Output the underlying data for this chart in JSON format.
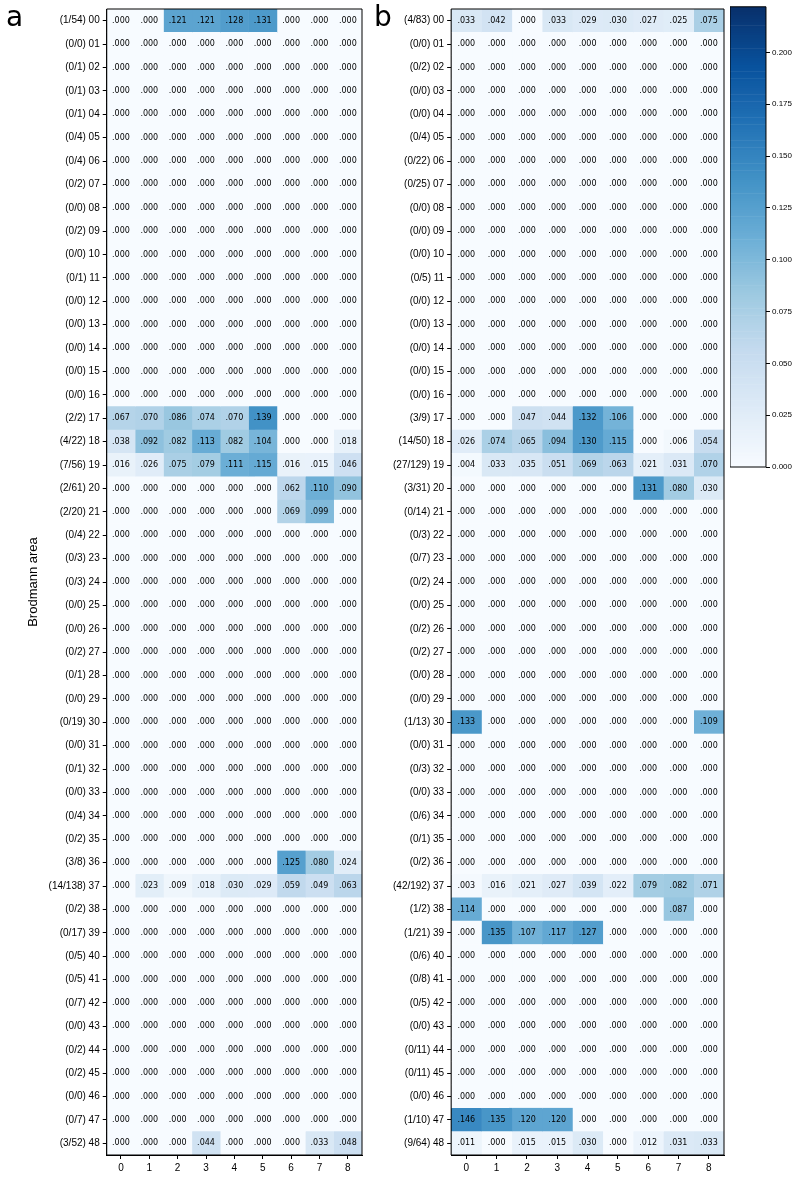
{
  "chart_data": [
    {
      "type": "heatmap",
      "title": "a",
      "ylabel": "Brodmann area",
      "categories": [
        "0",
        "1",
        "2",
        "3",
        "4",
        "5",
        "6",
        "7",
        "8"
      ],
      "y_categories": [
        "(1/54) 00",
        "(0/0) 01",
        "(0/1) 02",
        "(0/1) 03",
        "(0/1) 04",
        "(0/4) 05",
        "(0/4) 06",
        "(0/2) 07",
        "(0/0) 08",
        "(0/2) 09",
        "(0/0) 10",
        "(0/1) 11",
        "(0/0) 12",
        "(0/0) 13",
        "(0/0) 14",
        "(0/0) 15",
        "(0/0) 16",
        "(2/2) 17",
        "(4/22) 18",
        "(7/56) 19",
        "(2/61) 20",
        "(2/20) 21",
        "(0/4) 22",
        "(0/3) 23",
        "(0/3) 24",
        "(0/0) 25",
        "(0/0) 26",
        "(0/2) 27",
        "(0/1) 28",
        "(0/0) 29",
        "(0/19) 30",
        "(0/0) 31",
        "(0/1) 32",
        "(0/0) 33",
        "(0/4) 34",
        "(0/2) 35",
        "(3/8) 36",
        "(14/138) 37",
        "(0/2) 38",
        "(0/17) 39",
        "(0/5) 40",
        "(0/5) 41",
        "(0/7) 42",
        "(0/0) 43",
        "(0/2) 44",
        "(0/2) 45",
        "(0/0) 46",
        "(0/7) 47",
        "(3/52) 48"
      ],
      "cells": [
        [
          0,
          0,
          0.121,
          0.121,
          0.128,
          0.131,
          0,
          0,
          0
        ],
        [
          0,
          0,
          0,
          0,
          0,
          0,
          0,
          0,
          0
        ],
        [
          0,
          0,
          0,
          0,
          0,
          0,
          0,
          0,
          0
        ],
        [
          0,
          0,
          0,
          0,
          0,
          0,
          0,
          0,
          0
        ],
        [
          0,
          0,
          0,
          0,
          0,
          0,
          0,
          0,
          0
        ],
        [
          0,
          0,
          0,
          0,
          0,
          0,
          0,
          0,
          0
        ],
        [
          0,
          0,
          0,
          0,
          0,
          0,
          0,
          0,
          0
        ],
        [
          0,
          0,
          0,
          0,
          0,
          0,
          0,
          0,
          0
        ],
        [
          0,
          0,
          0,
          0,
          0,
          0,
          0,
          0,
          0
        ],
        [
          0,
          0,
          0,
          0,
          0,
          0,
          0,
          0,
          0
        ],
        [
          0,
          0,
          0,
          0,
          0,
          0,
          0,
          0,
          0
        ],
        [
          0,
          0,
          0,
          0,
          0,
          0,
          0,
          0,
          0
        ],
        [
          0,
          0,
          0,
          0,
          0,
          0,
          0,
          0,
          0
        ],
        [
          0,
          0,
          0,
          0,
          0,
          0,
          0,
          0,
          0
        ],
        [
          0,
          0,
          0,
          0,
          0,
          0,
          0,
          0,
          0
        ],
        [
          0,
          0,
          0,
          0,
          0,
          0,
          0,
          0,
          0
        ],
        [
          0,
          0,
          0,
          0,
          0,
          0,
          0,
          0,
          0
        ],
        [
          0.067,
          0.07,
          0.086,
          0.074,
          0.07,
          0.139,
          0,
          0,
          0
        ],
        [
          0.038,
          0.092,
          0.082,
          0.113,
          0.082,
          0.104,
          0,
          0,
          0.018
        ],
        [
          0.016,
          0.026,
          0.075,
          0.079,
          0.111,
          0.115,
          0.016,
          0.015,
          0.046
        ],
        [
          0,
          0,
          0,
          0,
          0,
          0,
          0.062,
          0.11,
          0.09
        ],
        [
          0,
          0,
          0,
          0,
          0,
          0,
          0.069,
          0.099,
          0
        ],
        [
          0,
          0,
          0,
          0,
          0,
          0,
          0,
          0,
          0
        ],
        [
          0,
          0,
          0,
          0,
          0,
          0,
          0,
          0,
          0
        ],
        [
          0,
          0,
          0,
          0,
          0,
          0,
          0,
          0,
          0
        ],
        [
          0,
          0,
          0,
          0,
          0,
          0,
          0,
          0,
          0
        ],
        [
          0,
          0,
          0,
          0,
          0,
          0,
          0,
          0,
          0
        ],
        [
          0,
          0,
          0,
          0,
          0,
          0,
          0,
          0,
          0
        ],
        [
          0,
          0,
          0,
          0,
          0,
          0,
          0,
          0,
          0
        ],
        [
          0,
          0,
          0,
          0,
          0,
          0,
          0,
          0,
          0
        ],
        [
          0,
          0,
          0,
          0,
          0,
          0,
          0,
          0,
          0
        ],
        [
          0,
          0,
          0,
          0,
          0,
          0,
          0,
          0,
          0
        ],
        [
          0,
          0,
          0,
          0,
          0,
          0,
          0,
          0,
          0
        ],
        [
          0,
          0,
          0,
          0,
          0,
          0,
          0,
          0,
          0
        ],
        [
          0,
          0,
          0,
          0,
          0,
          0,
          0,
          0,
          0
        ],
        [
          0,
          0,
          0,
          0,
          0,
          0,
          0,
          0,
          0
        ],
        [
          0,
          0,
          0,
          0,
          0,
          0,
          0.125,
          0.08,
          0.024
        ],
        [
          0,
          0.023,
          0.009,
          0.018,
          0.03,
          0.029,
          0.059,
          0.049,
          0.063
        ],
        [
          0,
          0,
          0,
          0,
          0,
          0,
          0,
          0,
          0
        ],
        [
          0,
          0,
          0,
          0,
          0,
          0,
          0,
          0,
          0
        ],
        [
          0,
          0,
          0,
          0,
          0,
          0,
          0,
          0,
          0
        ],
        [
          0,
          0,
          0,
          0,
          0,
          0,
          0,
          0,
          0
        ],
        [
          0,
          0,
          0,
          0,
          0,
          0,
          0,
          0,
          0
        ],
        [
          0,
          0,
          0,
          0,
          0,
          0,
          0,
          0,
          0
        ],
        [
          0,
          0,
          0,
          0,
          0,
          0,
          0,
          0,
          0
        ],
        [
          0,
          0,
          0,
          0,
          0,
          0,
          0,
          0,
          0
        ],
        [
          0,
          0,
          0,
          0,
          0,
          0,
          0,
          0,
          0
        ],
        [
          0,
          0,
          0,
          0,
          0,
          0,
          0,
          0,
          0
        ],
        [
          0,
          0,
          0,
          0.044,
          0,
          0,
          0,
          0.033,
          0.048
        ]
      ],
      "cell_labels": [
        [
          ".000",
          ".000",
          ".121",
          ".121",
          ".128",
          ".131",
          ".000",
          ".000",
          ".000"
        ],
        [
          ".000",
          ".000",
          ".000",
          ".000",
          ".000",
          ".000",
          ".000",
          ".000",
          ".000"
        ],
        [
          ".000",
          ".000",
          ".000",
          ".000",
          ".000",
          ".000",
          ".000",
          ".000",
          ".000"
        ],
        [
          ".000",
          ".000",
          ".000",
          ".000",
          ".000",
          ".000",
          ".000",
          ".000",
          ".000"
        ],
        [
          ".000",
          ".000",
          ".000",
          ".000",
          ".000",
          ".000",
          ".000",
          ".000",
          ".000"
        ],
        [
          ".000",
          ".000",
          ".000",
          ".000",
          ".000",
          ".000",
          ".000",
          ".000",
          ".000"
        ],
        [
          ".000",
          ".000",
          ".000",
          ".000",
          ".000",
          ".000",
          ".000",
          ".000",
          ".000"
        ],
        [
          ".000",
          ".000",
          ".000",
          ".000",
          ".000",
          ".000",
          ".000",
          ".000",
          ".000"
        ],
        [
          ".000",
          ".000",
          ".000",
          ".000",
          ".000",
          ".000",
          ".000",
          ".000",
          ".000"
        ],
        [
          ".000",
          ".000",
          ".000",
          ".000",
          ".000",
          ".000",
          ".000",
          ".000",
          ".000"
        ],
        [
          ".000",
          ".000",
          ".000",
          ".000",
          ".000",
          ".000",
          ".000",
          ".000",
          ".000"
        ],
        [
          ".000",
          ".000",
          ".000",
          ".000",
          ".000",
          ".000",
          ".000",
          ".000",
          ".000"
        ],
        [
          ".000",
          ".000",
          ".000",
          ".000",
          ".000",
          ".000",
          ".000",
          ".000",
          ".000"
        ],
        [
          ".000",
          ".000",
          ".000",
          ".000",
          ".000",
          ".000",
          ".000",
          ".000",
          ".000"
        ],
        [
          ".000",
          ".000",
          ".000",
          ".000",
          ".000",
          ".000",
          ".000",
          ".000",
          ".000"
        ],
        [
          ".000",
          ".000",
          ".000",
          ".000",
          ".000",
          ".000",
          ".000",
          ".000",
          ".000"
        ],
        [
          ".000",
          ".000",
          ".000",
          ".000",
          ".000",
          ".000",
          ".000",
          ".000",
          ".000"
        ],
        [
          ".067",
          ".070",
          ".086",
          ".074",
          ".070",
          ".139",
          ".000",
          ".000",
          ".000"
        ],
        [
          ".038",
          ".092",
          ".082",
          ".113",
          ".082",
          ".104",
          ".000",
          ".000",
          ".018"
        ],
        [
          ".016",
          ".026",
          ".075",
          ".079",
          ".111",
          ".115",
          ".016",
          ".015",
          ".046"
        ],
        [
          ".000",
          ".000",
          ".000",
          ".000",
          ".000",
          ".000",
          ".062",
          ".110",
          ".090"
        ],
        [
          ".000",
          ".000",
          ".000",
          ".000",
          ".000",
          ".000",
          ".069",
          ".099",
          ".000"
        ],
        [
          ".000",
          ".000",
          ".000",
          ".000",
          ".000",
          ".000",
          ".000",
          ".000",
          ".000"
        ],
        [
          ".000",
          ".000",
          ".000",
          ".000",
          ".000",
          ".000",
          ".000",
          ".000",
          ".000"
        ],
        [
          ".000",
          ".000",
          ".000",
          ".000",
          ".000",
          ".000",
          ".000",
          ".000",
          ".000"
        ],
        [
          ".000",
          ".000",
          ".000",
          ".000",
          ".000",
          ".000",
          ".000",
          ".000",
          ".000"
        ],
        [
          ".000",
          ".000",
          ".000",
          ".000",
          ".000",
          ".000",
          ".000",
          ".000",
          ".000"
        ],
        [
          ".000",
          ".000",
          ".000",
          ".000",
          ".000",
          ".000",
          ".000",
          ".000",
          ".000"
        ],
        [
          ".000",
          ".000",
          ".000",
          ".000",
          ".000",
          ".000",
          ".000",
          ".000",
          ".000"
        ],
        [
          ".000",
          ".000",
          ".000",
          ".000",
          ".000",
          ".000",
          ".000",
          ".000",
          ".000"
        ],
        [
          ".000",
          ".000",
          ".000",
          ".000",
          ".000",
          ".000",
          ".000",
          ".000",
          ".000"
        ],
        [
          ".000",
          ".000",
          ".000",
          ".000",
          ".000",
          ".000",
          ".000",
          ".000",
          ".000"
        ],
        [
          ".000",
          ".000",
          ".000",
          ".000",
          ".000",
          ".000",
          ".000",
          ".000",
          ".000"
        ],
        [
          ".000",
          ".000",
          ".000",
          ".000",
          ".000",
          ".000",
          ".000",
          ".000",
          ".000"
        ],
        [
          ".000",
          ".000",
          ".000",
          ".000",
          ".000",
          ".000",
          ".000",
          ".000",
          ".000"
        ],
        [
          ".000",
          ".000",
          ".000",
          ".000",
          ".000",
          ".000",
          ".000",
          ".000",
          ".000"
        ],
        [
          ".000",
          ".000",
          ".000",
          ".000",
          ".000",
          ".000",
          ".125",
          ".080",
          ".024"
        ],
        [
          ".000",
          ".023",
          ".009",
          ".018",
          ".030",
          ".029",
          ".059",
          ".049",
          ".063"
        ],
        [
          ".000",
          ".000",
          ".000",
          ".000",
          ".000",
          ".000",
          ".000",
          ".000",
          ".000"
        ],
        [
          ".000",
          ".000",
          ".000",
          ".000",
          ".000",
          ".000",
          ".000",
          ".000",
          ".000"
        ],
        [
          ".000",
          ".000",
          ".000",
          ".000",
          ".000",
          ".000",
          ".000",
          ".000",
          ".000"
        ],
        [
          ".000",
          ".000",
          ".000",
          ".000",
          ".000",
          ".000",
          ".000",
          ".000",
          ".000"
        ],
        [
          ".000",
          ".000",
          ".000",
          ".000",
          ".000",
          ".000",
          ".000",
          ".000",
          ".000"
        ],
        [
          ".000",
          ".000",
          ".000",
          ".000",
          ".000",
          ".000",
          ".000",
          ".000",
          ".000"
        ],
        [
          ".000",
          ".000",
          ".000",
          ".000",
          ".000",
          ".000",
          ".000",
          ".000",
          ".000"
        ],
        [
          ".000",
          ".000",
          ".000",
          ".000",
          ".000",
          ".000",
          ".000",
          ".000",
          ".000"
        ],
        [
          ".000",
          ".000",
          ".000",
          ".000",
          ".000",
          ".000",
          ".000",
          ".000",
          ".000"
        ],
        [
          ".000",
          ".000",
          ".000",
          ".000",
          ".000",
          ".000",
          ".000",
          ".000",
          ".000"
        ],
        [
          ".000",
          ".000",
          ".000",
          ".044",
          ".000",
          ".000",
          ".000",
          ".033",
          ".048"
        ]
      ]
    },
    {
      "type": "heatmap",
      "title": "b",
      "categories": [
        "0",
        "1",
        "2",
        "3",
        "4",
        "5",
        "6",
        "7",
        "8"
      ],
      "y_categories": [
        "(4/83) 00",
        "(0/0) 01",
        "(0/2) 02",
        "(0/0) 03",
        "(0/0) 04",
        "(0/4) 05",
        "(0/22) 06",
        "(0/25) 07",
        "(0/0) 08",
        "(0/0) 09",
        "(0/0) 10",
        "(0/5) 11",
        "(0/0) 12",
        "(0/0) 13",
        "(0/0) 14",
        "(0/0) 15",
        "(0/0) 16",
        "(3/9) 17",
        "(14/50) 18",
        "(27/129) 19",
        "(3/31) 20",
        "(0/14) 21",
        "(0/3) 22",
        "(0/7) 23",
        "(0/2) 24",
        "(0/0) 25",
        "(0/2) 26",
        "(0/2) 27",
        "(0/0) 28",
        "(0/0) 29",
        "(1/13) 30",
        "(0/0) 31",
        "(0/3) 32",
        "(0/0) 33",
        "(0/6) 34",
        "(0/1) 35",
        "(0/2) 36",
        "(42/192) 37",
        "(1/2) 38",
        "(1/21) 39",
        "(0/6) 40",
        "(0/8) 41",
        "(0/5) 42",
        "(0/0) 43",
        "(0/11) 44",
        "(0/11) 45",
        "(0/0) 46",
        "(1/10) 47",
        "(9/64) 48"
      ],
      "cells": [
        [
          0.033,
          0.042,
          0,
          0.033,
          0.029,
          0.03,
          0.027,
          0.025,
          0.075
        ],
        [
          0,
          0,
          0,
          0,
          0,
          0,
          0,
          0,
          0
        ],
        [
          0,
          0,
          0,
          0,
          0,
          0,
          0,
          0,
          0
        ],
        [
          0,
          0,
          0,
          0,
          0,
          0,
          0,
          0,
          0
        ],
        [
          0,
          0,
          0,
          0,
          0,
          0,
          0,
          0,
          0
        ],
        [
          0,
          0,
          0,
          0,
          0,
          0,
          0,
          0,
          0
        ],
        [
          0,
          0,
          0,
          0,
          0,
          0,
          0,
          0,
          0
        ],
        [
          0,
          0,
          0,
          0,
          0,
          0,
          0,
          0,
          0
        ],
        [
          0,
          0,
          0,
          0,
          0,
          0,
          0,
          0,
          0
        ],
        [
          0,
          0,
          0,
          0,
          0,
          0,
          0,
          0,
          0
        ],
        [
          0,
          0,
          0,
          0,
          0,
          0,
          0,
          0,
          0
        ],
        [
          0,
          0,
          0,
          0,
          0,
          0,
          0,
          0,
          0
        ],
        [
          0,
          0,
          0,
          0,
          0,
          0,
          0,
          0,
          0
        ],
        [
          0,
          0,
          0,
          0,
          0,
          0,
          0,
          0,
          0
        ],
        [
          0,
          0,
          0,
          0,
          0,
          0,
          0,
          0,
          0
        ],
        [
          0,
          0,
          0,
          0,
          0,
          0,
          0,
          0,
          0
        ],
        [
          0,
          0,
          0,
          0,
          0,
          0,
          0,
          0,
          0
        ],
        [
          0,
          0,
          0.047,
          0.044,
          0.132,
          0.106,
          0,
          0,
          0
        ],
        [
          0.026,
          0.074,
          0.065,
          0.094,
          0.13,
          0.115,
          0,
          0.006,
          0.054
        ],
        [
          0.004,
          0.033,
          0.035,
          0.051,
          0.069,
          0.063,
          0.021,
          0.031,
          0.07
        ],
        [
          0,
          0,
          0,
          0,
          0,
          0,
          0.131,
          0.08,
          0.03
        ],
        [
          0,
          0,
          0,
          0,
          0,
          0,
          0,
          0,
          0
        ],
        [
          0,
          0,
          0,
          0,
          0,
          0,
          0,
          0,
          0
        ],
        [
          0,
          0,
          0,
          0,
          0,
          0,
          0,
          0,
          0
        ],
        [
          0,
          0,
          0,
          0,
          0,
          0,
          0,
          0,
          0
        ],
        [
          0,
          0,
          0,
          0,
          0,
          0,
          0,
          0,
          0
        ],
        [
          0,
          0,
          0,
          0,
          0,
          0,
          0,
          0,
          0
        ],
        [
          0,
          0,
          0,
          0,
          0,
          0,
          0,
          0,
          0
        ],
        [
          0,
          0,
          0,
          0,
          0,
          0,
          0,
          0,
          0
        ],
        [
          0,
          0,
          0,
          0,
          0,
          0,
          0,
          0,
          0
        ],
        [
          0.133,
          0,
          0,
          0,
          0,
          0,
          0,
          0,
          0.109
        ],
        [
          0,
          0,
          0,
          0,
          0,
          0,
          0,
          0,
          0
        ],
        [
          0,
          0,
          0,
          0,
          0,
          0,
          0,
          0,
          0
        ],
        [
          0,
          0,
          0,
          0,
          0,
          0,
          0,
          0,
          0
        ],
        [
          0,
          0,
          0,
          0,
          0,
          0,
          0,
          0,
          0
        ],
        [
          0,
          0,
          0,
          0,
          0,
          0,
          0,
          0,
          0
        ],
        [
          0,
          0,
          0,
          0,
          0,
          0,
          0,
          0,
          0
        ],
        [
          0.003,
          0.016,
          0.021,
          0.027,
          0.039,
          0.022,
          0.079,
          0.082,
          0.071
        ],
        [
          0.114,
          0,
          0,
          0,
          0,
          0,
          0,
          0.087,
          0
        ],
        [
          0,
          0.135,
          0.107,
          0.117,
          0.127,
          0,
          0,
          0,
          0
        ],
        [
          0,
          0,
          0,
          0,
          0,
          0,
          0,
          0,
          0
        ],
        [
          0,
          0,
          0,
          0,
          0,
          0,
          0,
          0,
          0
        ],
        [
          0,
          0,
          0,
          0,
          0,
          0,
          0,
          0,
          0
        ],
        [
          0,
          0,
          0,
          0,
          0,
          0,
          0,
          0,
          0
        ],
        [
          0,
          0,
          0,
          0,
          0,
          0,
          0,
          0,
          0
        ],
        [
          0,
          0,
          0,
          0,
          0,
          0,
          0,
          0,
          0
        ],
        [
          0,
          0,
          0,
          0,
          0,
          0,
          0,
          0,
          0
        ],
        [
          0.146,
          0.135,
          0.12,
          0.12,
          0,
          0,
          0,
          0,
          0
        ],
        [
          0.011,
          0,
          0.015,
          0.015,
          0.03,
          0,
          0.012,
          0.031,
          0.033
        ]
      ],
      "cell_labels": [
        [
          ".033",
          ".042",
          ".000",
          ".033",
          ".029",
          ".030",
          ".027",
          ".025",
          ".075"
        ],
        [
          ".000",
          ".000",
          ".000",
          ".000",
          ".000",
          ".000",
          ".000",
          ".000",
          ".000"
        ],
        [
          ".000",
          ".000",
          ".000",
          ".000",
          ".000",
          ".000",
          ".000",
          ".000",
          ".000"
        ],
        [
          ".000",
          ".000",
          ".000",
          ".000",
          ".000",
          ".000",
          ".000",
          ".000",
          ".000"
        ],
        [
          ".000",
          ".000",
          ".000",
          ".000",
          ".000",
          ".000",
          ".000",
          ".000",
          ".000"
        ],
        [
          ".000",
          ".000",
          ".000",
          ".000",
          ".000",
          ".000",
          ".000",
          ".000",
          ".000"
        ],
        [
          ".000",
          ".000",
          ".000",
          ".000",
          ".000",
          ".000",
          ".000",
          ".000",
          ".000"
        ],
        [
          ".000",
          ".000",
          ".000",
          ".000",
          ".000",
          ".000",
          ".000",
          ".000",
          ".000"
        ],
        [
          ".000",
          ".000",
          ".000",
          ".000",
          ".000",
          ".000",
          ".000",
          ".000",
          ".000"
        ],
        [
          ".000",
          ".000",
          ".000",
          ".000",
          ".000",
          ".000",
          ".000",
          ".000",
          ".000"
        ],
        [
          ".000",
          ".000",
          ".000",
          ".000",
          ".000",
          ".000",
          ".000",
          ".000",
          ".000"
        ],
        [
          ".000",
          ".000",
          ".000",
          ".000",
          ".000",
          ".000",
          ".000",
          ".000",
          ".000"
        ],
        [
          ".000",
          ".000",
          ".000",
          ".000",
          ".000",
          ".000",
          ".000",
          ".000",
          ".000"
        ],
        [
          ".000",
          ".000",
          ".000",
          ".000",
          ".000",
          ".000",
          ".000",
          ".000",
          ".000"
        ],
        [
          ".000",
          ".000",
          ".000",
          ".000",
          ".000",
          ".000",
          ".000",
          ".000",
          ".000"
        ],
        [
          ".000",
          ".000",
          ".000",
          ".000",
          ".000",
          ".000",
          ".000",
          ".000",
          ".000"
        ],
        [
          ".000",
          ".000",
          ".000",
          ".000",
          ".000",
          ".000",
          ".000",
          ".000",
          ".000"
        ],
        [
          ".000",
          ".000",
          ".047",
          ".044",
          ".132",
          ".106",
          ".000",
          ".000",
          ".000"
        ],
        [
          ".026",
          ".074",
          ".065",
          ".094",
          ".130",
          ".115",
          ".000",
          ".006",
          ".054"
        ],
        [
          ".004",
          ".033",
          ".035",
          ".051",
          ".069",
          ".063",
          ".021",
          ".031",
          ".070"
        ],
        [
          ".000",
          ".000",
          ".000",
          ".000",
          ".000",
          ".000",
          ".131",
          ".080",
          ".030"
        ],
        [
          ".000",
          ".000",
          ".000",
          ".000",
          ".000",
          ".000",
          ".000",
          ".000",
          ".000"
        ],
        [
          ".000",
          ".000",
          ".000",
          ".000",
          ".000",
          ".000",
          ".000",
          ".000",
          ".000"
        ],
        [
          ".000",
          ".000",
          ".000",
          ".000",
          ".000",
          ".000",
          ".000",
          ".000",
          ".000"
        ],
        [
          ".000",
          ".000",
          ".000",
          ".000",
          ".000",
          ".000",
          ".000",
          ".000",
          ".000"
        ],
        [
          ".000",
          ".000",
          ".000",
          ".000",
          ".000",
          ".000",
          ".000",
          ".000",
          ".000"
        ],
        [
          ".000",
          ".000",
          ".000",
          ".000",
          ".000",
          ".000",
          ".000",
          ".000",
          ".000"
        ],
        [
          ".000",
          ".000",
          ".000",
          ".000",
          ".000",
          ".000",
          ".000",
          ".000",
          ".000"
        ],
        [
          ".000",
          ".000",
          ".000",
          ".000",
          ".000",
          ".000",
          ".000",
          ".000",
          ".000"
        ],
        [
          ".000",
          ".000",
          ".000",
          ".000",
          ".000",
          ".000",
          ".000",
          ".000",
          ".000"
        ],
        [
          ".133",
          ".000",
          ".000",
          ".000",
          ".000",
          ".000",
          ".000",
          ".000",
          ".109"
        ],
        [
          ".000",
          ".000",
          ".000",
          ".000",
          ".000",
          ".000",
          ".000",
          ".000",
          ".000"
        ],
        [
          ".000",
          ".000",
          ".000",
          ".000",
          ".000",
          ".000",
          ".000",
          ".000",
          ".000"
        ],
        [
          ".000",
          ".000",
          ".000",
          ".000",
          ".000",
          ".000",
          ".000",
          ".000",
          ".000"
        ],
        [
          ".000",
          ".000",
          ".000",
          ".000",
          ".000",
          ".000",
          ".000",
          ".000",
          ".000"
        ],
        [
          ".000",
          ".000",
          ".000",
          ".000",
          ".000",
          ".000",
          ".000",
          ".000",
          ".000"
        ],
        [
          ".000",
          ".000",
          ".000",
          ".000",
          ".000",
          ".000",
          ".000",
          ".000",
          ".000"
        ],
        [
          ".003",
          ".016",
          ".021",
          ".027",
          ".039",
          ".022",
          ".079",
          ".082",
          ".071"
        ],
        [
          ".114",
          ".000",
          ".000",
          ".000",
          ".000",
          ".000",
          ".000",
          ".087",
          ".000"
        ],
        [
          ".000",
          ".135",
          ".107",
          ".117",
          ".127",
          ".000",
          ".000",
          ".000",
          ".000"
        ],
        [
          ".000",
          ".000",
          ".000",
          ".000",
          ".000",
          ".000",
          ".000",
          ".000",
          ".000"
        ],
        [
          ".000",
          ".000",
          ".000",
          ".000",
          ".000",
          ".000",
          ".000",
          ".000",
          ".000"
        ],
        [
          ".000",
          ".000",
          ".000",
          ".000",
          ".000",
          ".000",
          ".000",
          ".000",
          ".000"
        ],
        [
          ".000",
          ".000",
          ".000",
          ".000",
          ".000",
          ".000",
          ".000",
          ".000",
          ".000"
        ],
        [
          ".000",
          ".000",
          ".000",
          ".000",
          ".000",
          ".000",
          ".000",
          ".000",
          ".000"
        ],
        [
          ".000",
          ".000",
          ".000",
          ".000",
          ".000",
          ".000",
          ".000",
          ".000",
          ".000"
        ],
        [
          ".000",
          ".000",
          ".000",
          ".000",
          ".000",
          ".000",
          ".000",
          ".000",
          ".000"
        ],
        [
          ".146",
          ".135",
          ".120",
          ".120",
          ".000",
          ".000",
          ".000",
          ".000",
          ".000"
        ],
        [
          ".011",
          ".000",
          ".015",
          ".015",
          ".030",
          ".000",
          ".012",
          ".031",
          ".033"
        ]
      ],
      "clim": [
        0,
        0.222
      ],
      "cticks": [
        {
          "value": 0,
          "label": "0.000"
        },
        {
          "value": 0.025,
          "label": "0.025"
        },
        {
          "value": 0.05,
          "label": "0.050"
        },
        {
          "value": 0.075,
          "label": "0.075"
        },
        {
          "value": 0.1,
          "label": "0.100"
        },
        {
          "value": 0.125,
          "label": "0.125"
        },
        {
          "value": 0.15,
          "label": "0.150"
        },
        {
          "value": 0.175,
          "label": "0.175"
        },
        {
          "value": 0.2,
          "label": "0.200"
        }
      ]
    }
  ]
}
